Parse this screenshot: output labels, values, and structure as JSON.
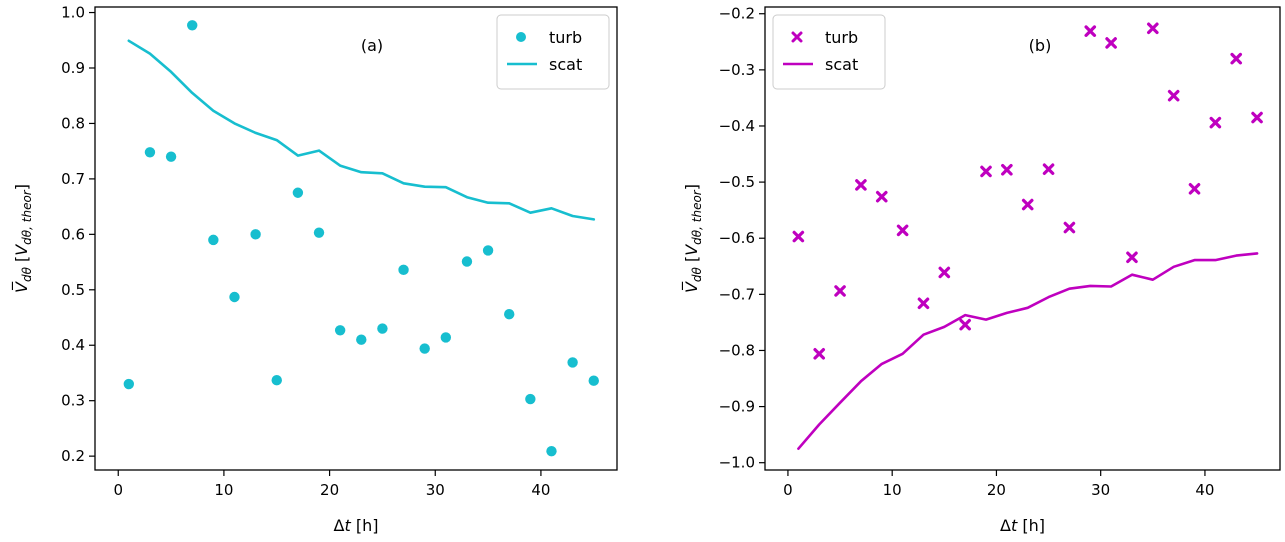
{
  "chart_data": [
    {
      "type": "scatter+line",
      "panel_label": "(a)",
      "xlabel_main": "Δ",
      "xlabel_var": "t",
      "xlabel_unit": " [h]",
      "ylabel_text": "V̅dθ [Vdθ, theor]",
      "ylabel_main": "V̅",
      "ylabel_sub": "dθ",
      "ylabel_bracket_open": " [",
      "ylabel_inner_main": "V",
      "ylabel_inner_sub": "dθ, theor",
      "ylabel_bracket_close": "]",
      "xlim": [
        -2.2,
        47.2
      ],
      "ylim": [
        0.175,
        1.01
      ],
      "x_ticks": [
        0,
        10,
        20,
        30,
        40
      ],
      "x_tick_labels": [
        "0",
        "10",
        "20",
        "30",
        "40"
      ],
      "y_ticks": [
        0.2,
        0.3,
        0.4,
        0.5,
        0.6,
        0.7,
        0.8,
        0.9,
        1.0
      ],
      "y_tick_labels": [
        "0.2",
        "0.3",
        "0.4",
        "0.5",
        "0.6",
        "0.7",
        "0.8",
        "0.9",
        "1.0"
      ],
      "legend_position": "top-right",
      "color": "#17becf",
      "series": [
        {
          "name": "turb",
          "kind": "scatter",
          "marker": "circle",
          "x": [
            1,
            3,
            5,
            7,
            9,
            11,
            13,
            15,
            17,
            19,
            21,
            23,
            25,
            27,
            29,
            31,
            33,
            35,
            37,
            39,
            41,
            43,
            45
          ],
          "y": [
            0.33,
            0.748,
            0.74,
            0.977,
            0.59,
            0.487,
            0.6,
            0.337,
            0.675,
            0.603,
            0.427,
            0.41,
            0.43,
            0.536,
            0.394,
            0.414,
            0.551,
            0.571,
            0.456,
            0.303,
            0.209,
            0.369,
            0.336
          ]
        },
        {
          "name": "scat",
          "kind": "line",
          "x": [
            1,
            3,
            5,
            7,
            9,
            11,
            13,
            15,
            17,
            19,
            21,
            23,
            25,
            27,
            29,
            31,
            33,
            35,
            37,
            39,
            41,
            43,
            45
          ],
          "y": [
            0.949,
            0.926,
            0.893,
            0.855,
            0.823,
            0.8,
            0.783,
            0.77,
            0.742,
            0.751,
            0.724,
            0.712,
            0.71,
            0.692,
            0.686,
            0.685,
            0.667,
            0.657,
            0.656,
            0.639,
            0.647,
            0.633,
            0.627
          ]
        }
      ]
    },
    {
      "type": "scatter+line",
      "panel_label": "(b)",
      "xlabel_main": "Δ",
      "xlabel_var": "t",
      "xlabel_unit": " [h]",
      "ylabel_text": "V̅dθ [Vdθ, theor]",
      "ylabel_main": "V̅",
      "ylabel_sub": "dθ",
      "ylabel_bracket_open": " [",
      "ylabel_inner_main": "V",
      "ylabel_inner_sub": "dθ, theor",
      "ylabel_bracket_close": "]",
      "xlim": [
        -2.2,
        47.2
      ],
      "ylim": [
        -1.013,
        -0.188
      ],
      "x_ticks": [
        0,
        10,
        20,
        30,
        40
      ],
      "x_tick_labels": [
        "0",
        "10",
        "20",
        "30",
        "40"
      ],
      "y_ticks": [
        -1.0,
        -0.9,
        -0.8,
        -0.7,
        -0.6,
        -0.5,
        -0.4,
        -0.3,
        -0.2
      ],
      "y_tick_labels": [
        "−1.0",
        "−0.9",
        "−0.8",
        "−0.7",
        "−0.6",
        "−0.5",
        "−0.4",
        "−0.3",
        "−0.2"
      ],
      "legend_position": "top-left",
      "color": "#bf00bf",
      "series": [
        {
          "name": "turb",
          "kind": "scatter",
          "marker": "x",
          "x": [
            1,
            3,
            5,
            7,
            9,
            11,
            13,
            15,
            17,
            19,
            21,
            23,
            25,
            27,
            29,
            31,
            33,
            35,
            37,
            39,
            41,
            43,
            45
          ],
          "y": [
            -0.597,
            -0.806,
            -0.694,
            -0.505,
            -0.526,
            -0.586,
            -0.716,
            -0.661,
            -0.754,
            -0.481,
            -0.478,
            -0.54,
            -0.477,
            -0.581,
            -0.231,
            -0.252,
            -0.634,
            -0.226,
            -0.346,
            -0.512,
            -0.394,
            -0.28,
            -0.385
          ]
        },
        {
          "name": "scat",
          "kind": "line",
          "x": [
            1,
            3,
            5,
            7,
            9,
            11,
            13,
            15,
            17,
            19,
            21,
            23,
            25,
            27,
            29,
            31,
            33,
            35,
            37,
            39,
            41,
            43,
            45
          ],
          "y": [
            -0.975,
            -0.932,
            -0.893,
            -0.855,
            -0.824,
            -0.806,
            -0.772,
            -0.758,
            -0.737,
            -0.745,
            -0.733,
            -0.724,
            -0.705,
            -0.69,
            -0.685,
            -0.686,
            -0.665,
            -0.674,
            -0.651,
            -0.639,
            -0.639,
            -0.631,
            -0.627
          ]
        }
      ]
    }
  ]
}
